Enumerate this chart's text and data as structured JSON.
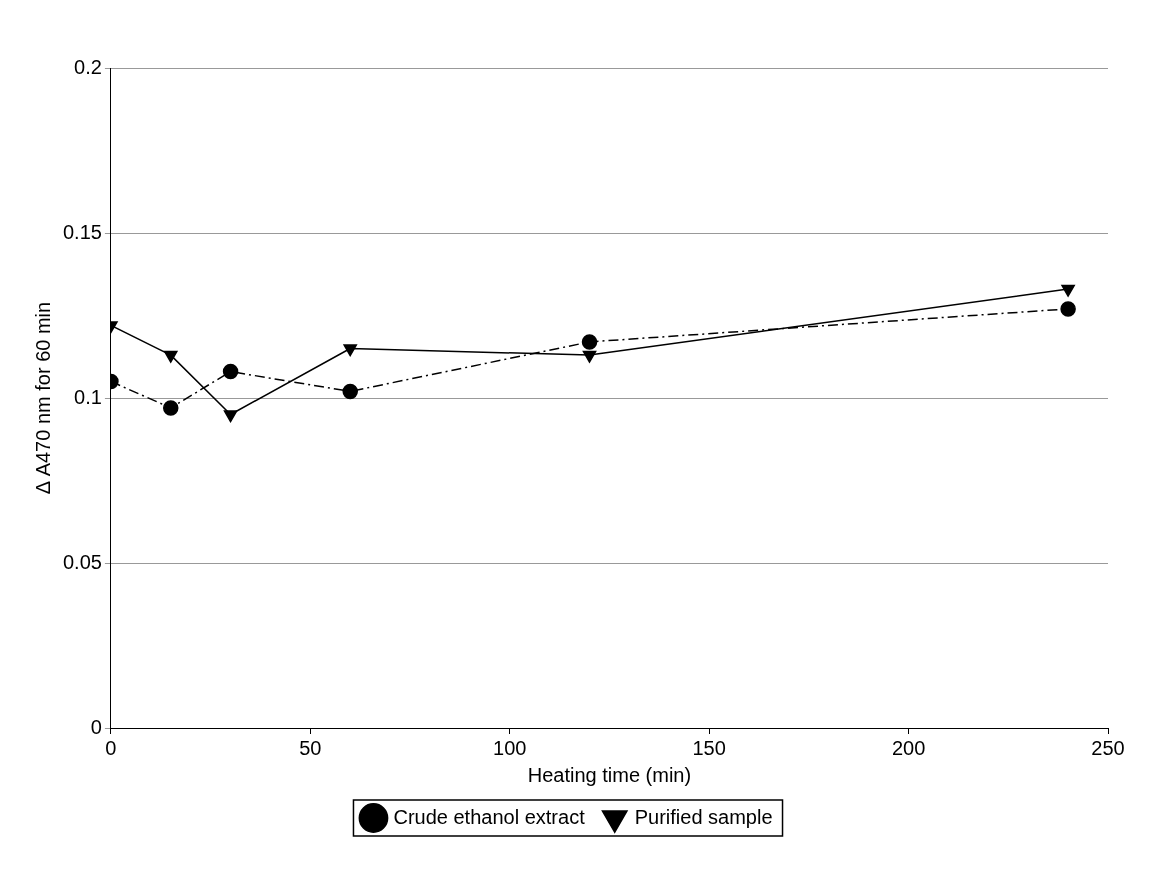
{
  "chart_data": {
    "type": "line",
    "xlabel": "Heating time (min)",
    "ylabel": "Δ A470 nm for 60 min",
    "xlim": [
      0,
      250
    ],
    "xticks": [
      0,
      50,
      100,
      150,
      200,
      250
    ],
    "ylim": [
      0,
      0.2
    ],
    "yticks": [
      0,
      0.05,
      0.1,
      0.15,
      0.2
    ],
    "grid": "y",
    "legend": "bottom",
    "series": [
      {
        "name": "Crude ethanol extract",
        "color": "#000000",
        "marker": "circle",
        "line_style": "dashed",
        "x": [
          0,
          15,
          30,
          60,
          120,
          240
        ],
        "values": [
          0.105,
          0.097,
          0.108,
          0.102,
          0.117,
          0.127
        ]
      },
      {
        "name": "Purified sample",
        "color": "#000000",
        "marker": "triangle",
        "line_style": "solid",
        "x": [
          0,
          15,
          30,
          60,
          120,
          240
        ],
        "values": [
          0.122,
          0.113,
          0.095,
          0.115,
          0.113,
          0.133
        ]
      }
    ]
  }
}
